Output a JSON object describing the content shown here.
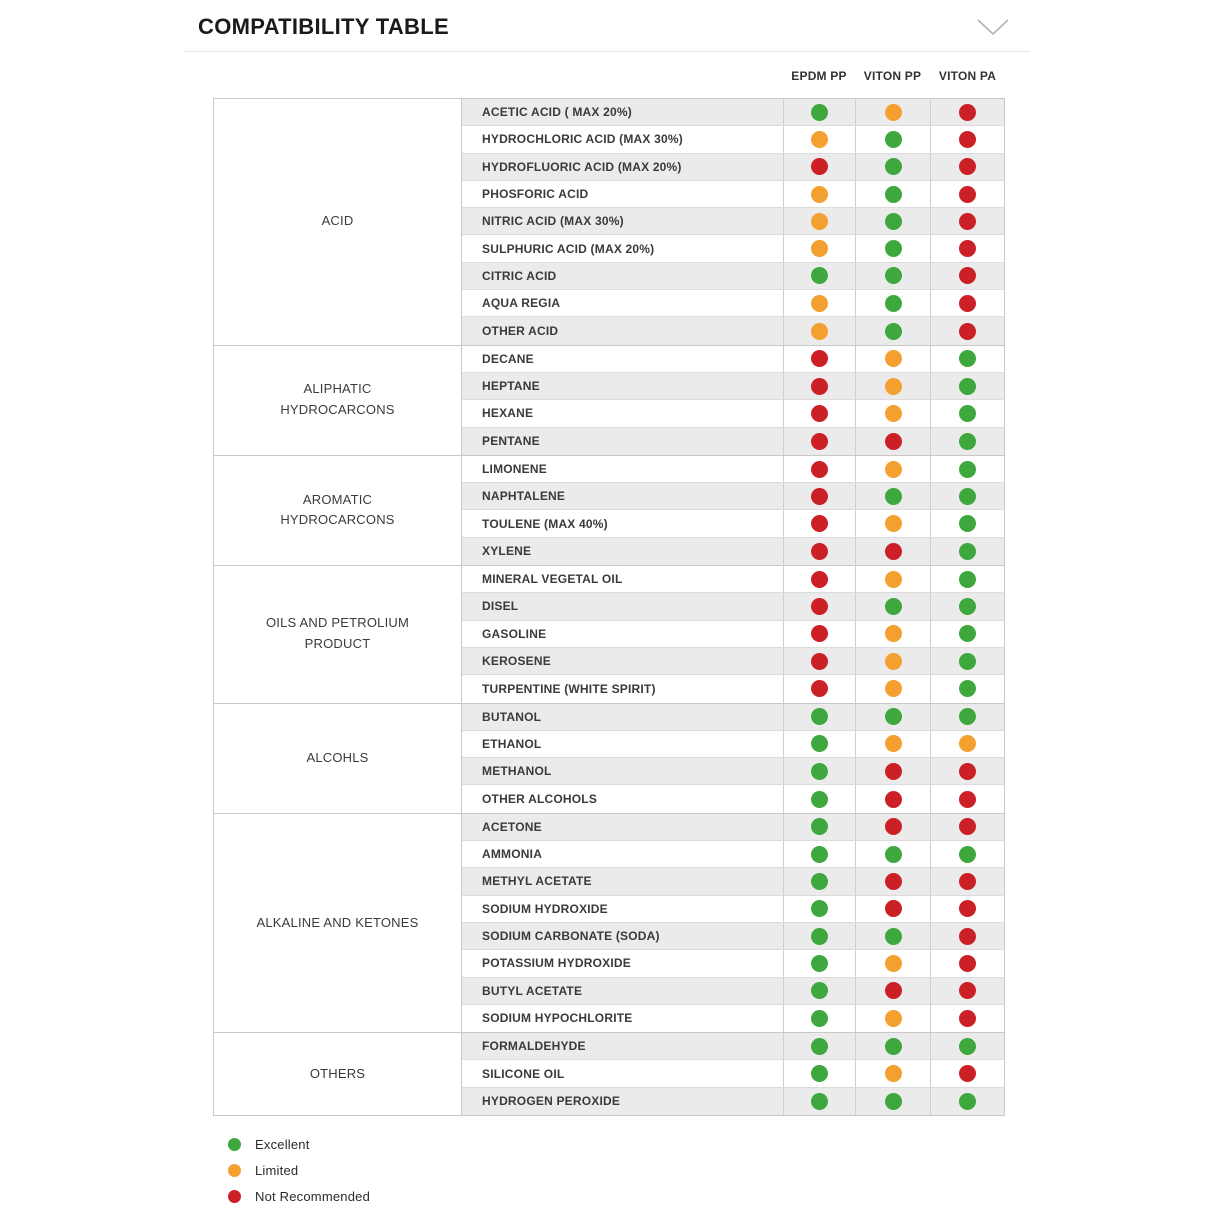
{
  "page_title": "COMPATIBILITY TABLE",
  "chart_data": {
    "type": "table",
    "title": "COMPATIBILITY TABLE",
    "columns": [
      "EPDM PP",
      "VITON PP",
      "VITON PA"
    ],
    "colors": {
      "excellent": "#3EA83E",
      "limited": "#F4A030",
      "not_recommended": "#CC2027"
    },
    "legend": [
      {
        "label": "Excellent",
        "rating": "excellent"
      },
      {
        "label": "Limited",
        "rating": "limited"
      },
      {
        "label": "Not Recommended",
        "rating": "not_recommended"
      }
    ],
    "sections": [
      {
        "category": "ACID",
        "rows": [
          {
            "chemical": "ACETIC ACID ( MAX 20%)",
            "ratings": [
              "excellent",
              "limited",
              "not_recommended"
            ]
          },
          {
            "chemical": "HYDROCHLORIC ACID (MAX 30%)",
            "ratings": [
              "limited",
              "excellent",
              "not_recommended"
            ]
          },
          {
            "chemical": "HYDROFLUORIC ACID (MAX 20%)",
            "ratings": [
              "not_recommended",
              "excellent",
              "not_recommended"
            ]
          },
          {
            "chemical": "PHOSFORIC ACID",
            "ratings": [
              "limited",
              "excellent",
              "not_recommended"
            ]
          },
          {
            "chemical": "NITRIC ACID (MAX 30%)",
            "ratings": [
              "limited",
              "excellent",
              "not_recommended"
            ]
          },
          {
            "chemical": "SULPHURIC ACID (MAX 20%)",
            "ratings": [
              "limited",
              "excellent",
              "not_recommended"
            ]
          },
          {
            "chemical": "CITRIC ACID",
            "ratings": [
              "excellent",
              "excellent",
              "not_recommended"
            ]
          },
          {
            "chemical": "AQUA REGIA",
            "ratings": [
              "limited",
              "excellent",
              "not_recommended"
            ]
          },
          {
            "chemical": "OTHER ACID",
            "ratings": [
              "limited",
              "excellent",
              "not_recommended"
            ]
          }
        ]
      },
      {
        "category": "ALIPHATIC HYDROCARCONS",
        "rows": [
          {
            "chemical": "DECANE",
            "ratings": [
              "not_recommended",
              "limited",
              "excellent"
            ]
          },
          {
            "chemical": "HEPTANE",
            "ratings": [
              "not_recommended",
              "limited",
              "excellent"
            ]
          },
          {
            "chemical": "HEXANE",
            "ratings": [
              "not_recommended",
              "limited",
              "excellent"
            ]
          },
          {
            "chemical": "PENTANE",
            "ratings": [
              "not_recommended",
              "not_recommended",
              "excellent"
            ]
          }
        ]
      },
      {
        "category": "AROMATIC HYDROCARCONS",
        "rows": [
          {
            "chemical": "LIMONENE",
            "ratings": [
              "not_recommended",
              "limited",
              "excellent"
            ]
          },
          {
            "chemical": "NAPHTALENE",
            "ratings": [
              "not_recommended",
              "excellent",
              "excellent"
            ]
          },
          {
            "chemical": "TOULENE (MAX 40%)",
            "ratings": [
              "not_recommended",
              "limited",
              "excellent"
            ]
          },
          {
            "chemical": "XYLENE",
            "ratings": [
              "not_recommended",
              "not_recommended",
              "excellent"
            ]
          }
        ]
      },
      {
        "category": "OILS AND PETROLIUM PRODUCT",
        "rows": [
          {
            "chemical": "MINERAL VEGETAL OIL",
            "ratings": [
              "not_recommended",
              "limited",
              "excellent"
            ]
          },
          {
            "chemical": "DISEL",
            "ratings": [
              "not_recommended",
              "excellent",
              "excellent"
            ]
          },
          {
            "chemical": "GASOLINE",
            "ratings": [
              "not_recommended",
              "limited",
              "excellent"
            ]
          },
          {
            "chemical": "KEROSENE",
            "ratings": [
              "not_recommended",
              "limited",
              "excellent"
            ]
          },
          {
            "chemical": "TURPENTINE (WHITE SPIRIT)",
            "ratings": [
              "not_recommended",
              "limited",
              "excellent"
            ]
          }
        ]
      },
      {
        "category": "ALCOHLS",
        "rows": [
          {
            "chemical": "BUTANOL",
            "ratings": [
              "excellent",
              "excellent",
              "excellent"
            ]
          },
          {
            "chemical": "ETHANOL",
            "ratings": [
              "excellent",
              "limited",
              "limited"
            ]
          },
          {
            "chemical": "METHANOL",
            "ratings": [
              "excellent",
              "not_recommended",
              "not_recommended"
            ]
          },
          {
            "chemical": "OTHER ALCOHOLS",
            "ratings": [
              "excellent",
              "not_recommended",
              "not_recommended"
            ]
          }
        ]
      },
      {
        "category": "ALKALINE AND KETONES",
        "rows": [
          {
            "chemical": "ACETONE",
            "ratings": [
              "excellent",
              "not_recommended",
              "not_recommended"
            ]
          },
          {
            "chemical": "AMMONIA",
            "ratings": [
              "excellent",
              "excellent",
              "excellent"
            ]
          },
          {
            "chemical": "METHYL ACETATE",
            "ratings": [
              "excellent",
              "not_recommended",
              "not_recommended"
            ]
          },
          {
            "chemical": "SODIUM HYDROXIDE",
            "ratings": [
              "excellent",
              "not_recommended",
              "not_recommended"
            ]
          },
          {
            "chemical": "SODIUM CARBONATE (SODA)",
            "ratings": [
              "excellent",
              "excellent",
              "not_recommended"
            ]
          },
          {
            "chemical": "POTASSIUM HYDROXIDE",
            "ratings": [
              "excellent",
              "limited",
              "not_recommended"
            ]
          },
          {
            "chemical": "BUTYL ACETATE",
            "ratings": [
              "excellent",
              "not_recommended",
              "not_recommended"
            ]
          },
          {
            "chemical": "SODIUM HYPOCHLORITE",
            "ratings": [
              "excellent",
              "limited",
              "not_recommended"
            ]
          }
        ]
      },
      {
        "category": "OTHERS",
        "rows": [
          {
            "chemical": "FORMALDEHYDE",
            "ratings": [
              "excellent",
              "excellent",
              "excellent"
            ]
          },
          {
            "chemical": "SILICONE OIL",
            "ratings": [
              "excellent",
              "limited",
              "not_recommended"
            ]
          },
          {
            "chemical": "HYDROGEN PEROXIDE",
            "ratings": [
              "excellent",
              "excellent",
              "excellent"
            ]
          }
        ]
      }
    ]
  }
}
